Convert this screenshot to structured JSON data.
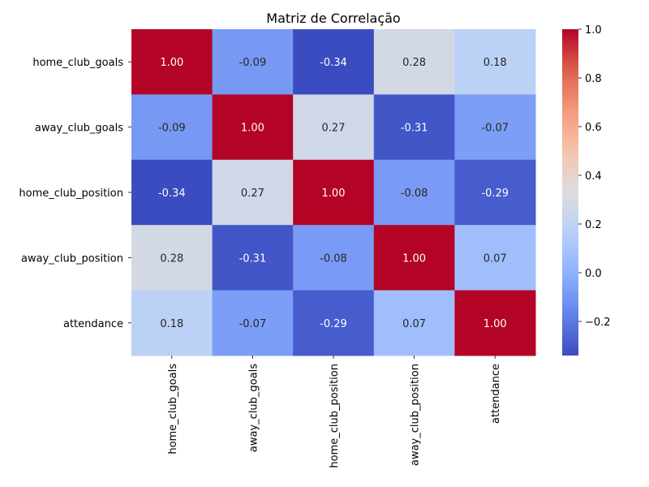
{
  "chart_data": {
    "type": "heatmap",
    "title": "Matriz de Correlação",
    "rows": [
      "home_club_goals",
      "away_club_goals",
      "home_club_position",
      "away_club_position",
      "attendance"
    ],
    "columns": [
      "home_club_goals",
      "away_club_goals",
      "home_club_position",
      "away_club_position",
      "attendance"
    ],
    "values": [
      [
        1.0,
        -0.09,
        -0.34,
        0.28,
        0.18
      ],
      [
        -0.09,
        1.0,
        0.27,
        -0.31,
        -0.07
      ],
      [
        -0.34,
        0.27,
        1.0,
        -0.08,
        -0.29
      ],
      [
        0.28,
        -0.31,
        -0.08,
        1.0,
        0.07
      ],
      [
        0.18,
        -0.07,
        -0.29,
        0.07,
        1.0
      ]
    ],
    "value_labels": [
      [
        "1.00",
        "-0.09",
        "-0.34",
        "0.28",
        "0.18"
      ],
      [
        "-0.09",
        "1.00",
        "0.27",
        "-0.31",
        "-0.07"
      ],
      [
        "-0.34",
        "0.27",
        "1.00",
        "-0.08",
        "-0.29"
      ],
      [
        "0.28",
        "-0.31",
        "-0.08",
        "1.00",
        "0.07"
      ],
      [
        "0.18",
        "-0.07",
        "-0.29",
        "0.07",
        "1.00"
      ]
    ],
    "colormap": "coolwarm",
    "vmin": -0.34,
    "vmax": 1.0,
    "colorbar": {
      "ticks": [
        -0.2,
        0.0,
        0.2,
        0.4,
        0.6,
        0.8,
        1.0
      ],
      "tick_labels": [
        "−0.2",
        "0.0",
        "0.2",
        "0.4",
        "0.6",
        "0.8",
        "1.0"
      ],
      "placement": "right"
    },
    "grid": false
  }
}
